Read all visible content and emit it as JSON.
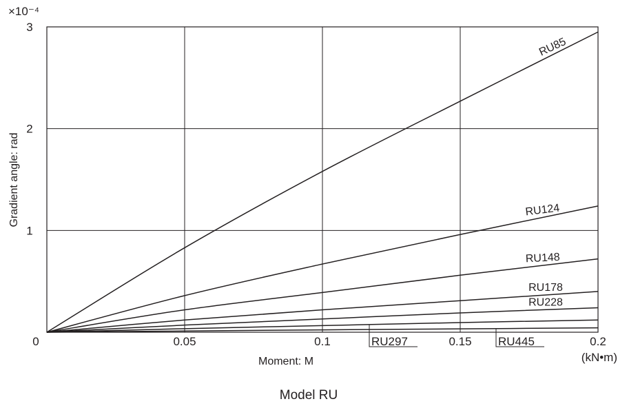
{
  "chart_data": {
    "type": "line",
    "caption": "Model RU",
    "xlabel": "Moment: M",
    "xunit": "(kN•m)",
    "ylabel": "Gradient angle: rad",
    "yscale_label": "×10⁻⁴",
    "xlim": [
      0,
      0.2
    ],
    "ylim": [
      0,
      3
    ],
    "grid": true,
    "x_ticks": [
      {
        "value": 0,
        "label": "0"
      },
      {
        "value": 0.05,
        "label": "0.05"
      },
      {
        "value": 0.1,
        "label": "0.1"
      },
      {
        "value": 0.15,
        "label": "0.15"
      },
      {
        "value": 0.2,
        "label": "0.2"
      }
    ],
    "y_ticks": [
      {
        "value": 0,
        "label": "0"
      },
      {
        "value": 1,
        "label": "1"
      },
      {
        "value": 2,
        "label": "2"
      },
      {
        "value": 3,
        "label": "3"
      }
    ],
    "series": [
      {
        "name": "RU85",
        "x": [
          0,
          0.05,
          0.1,
          0.15,
          0.2
        ],
        "y": [
          0,
          0.83,
          1.58,
          2.27,
          2.95
        ]
      },
      {
        "name": "RU124",
        "x": [
          0,
          0.05,
          0.1,
          0.15,
          0.2
        ],
        "y": [
          0,
          0.36,
          0.67,
          0.96,
          1.24
        ]
      },
      {
        "name": "RU148",
        "x": [
          0,
          0.05,
          0.1,
          0.15,
          0.2
        ],
        "y": [
          0,
          0.22,
          0.39,
          0.56,
          0.72
        ]
      },
      {
        "name": "RU178",
        "x": [
          0,
          0.05,
          0.1,
          0.15,
          0.2
        ],
        "y": [
          0,
          0.12,
          0.22,
          0.31,
          0.4
        ]
      },
      {
        "name": "RU228",
        "x": [
          0,
          0.05,
          0.1,
          0.15,
          0.2
        ],
        "y": [
          0,
          0.07,
          0.13,
          0.19,
          0.24
        ]
      },
      {
        "name": "RU297",
        "x": [
          0,
          0.05,
          0.1,
          0.15,
          0.2
        ],
        "y": [
          0,
          0.035,
          0.065,
          0.095,
          0.12
        ]
      },
      {
        "name": "RU445",
        "x": [
          0,
          0.05,
          0.1,
          0.15,
          0.2
        ],
        "y": [
          0,
          0.012,
          0.023,
          0.033,
          0.043
        ]
      }
    ]
  }
}
